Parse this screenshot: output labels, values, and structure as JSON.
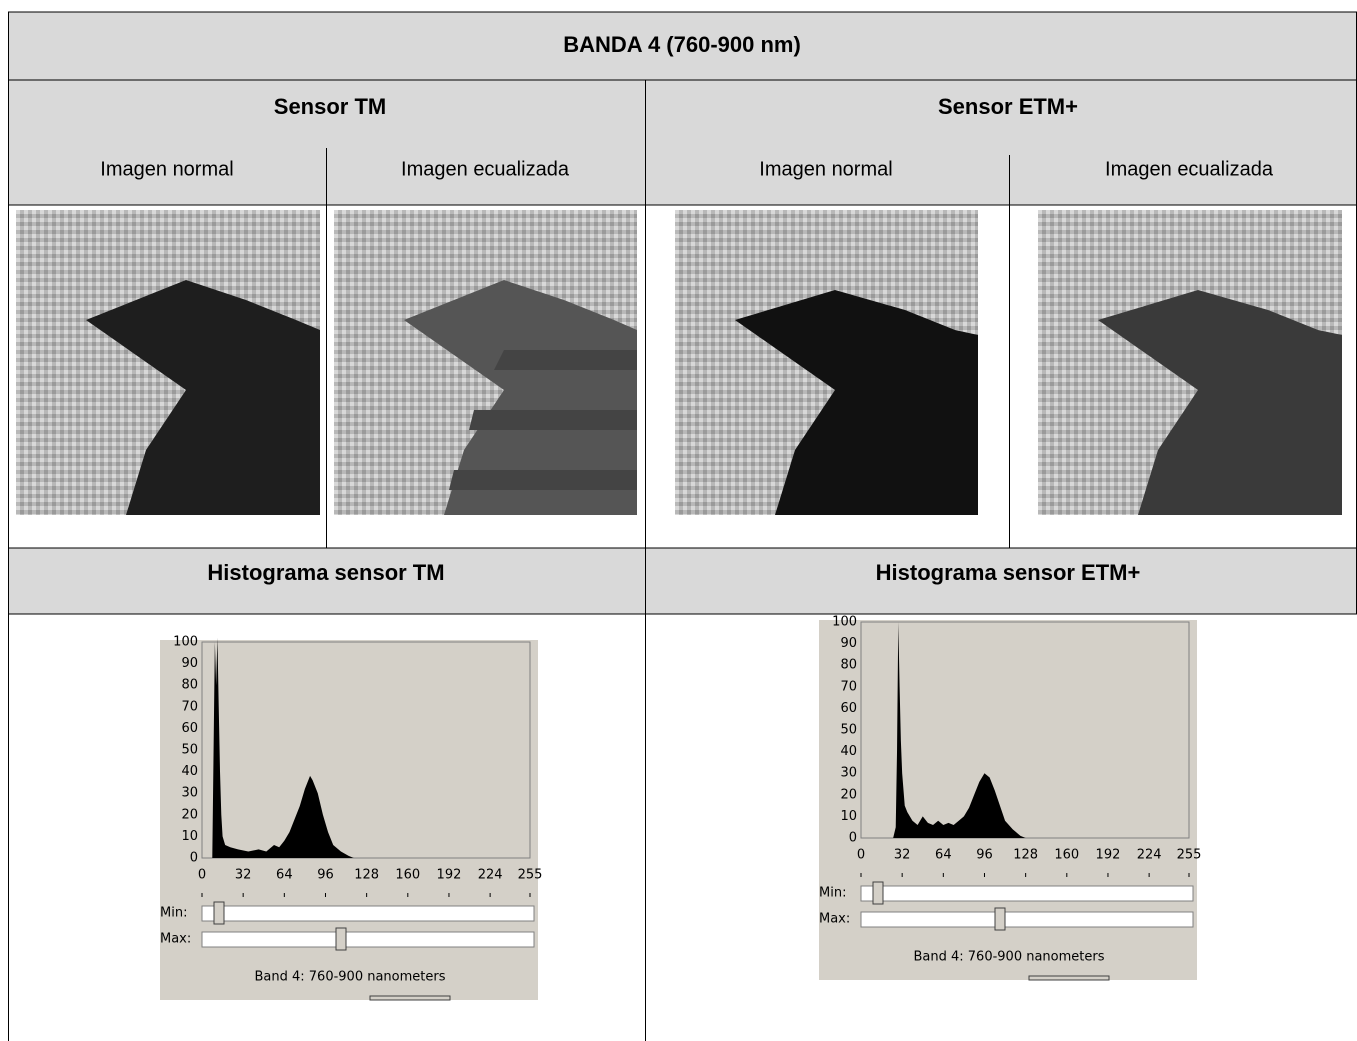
{
  "header": {
    "title": "BANDA 4 (760-900 nm)"
  },
  "sensors": [
    {
      "name": "Sensor TM",
      "columns": [
        "Imagen normal",
        "Imagen ecualizada"
      ],
      "histogram_title": "Histograma sensor TM",
      "histogram": {
        "type": "area",
        "xlim": [
          0,
          255
        ],
        "ylim": [
          0,
          100
        ],
        "xticks": [
          0,
          32,
          64,
          96,
          128,
          160,
          192,
          224,
          255
        ],
        "yticks": [
          0,
          10,
          20,
          30,
          40,
          50,
          60,
          70,
          80,
          90,
          100
        ],
        "x": [
          8,
          10,
          11,
          12,
          13,
          14,
          15,
          16,
          18,
          22,
          28,
          36,
          44,
          50,
          56,
          60,
          64,
          68,
          72,
          76,
          80,
          84,
          86,
          90,
          94,
          98,
          102,
          108,
          114,
          118
        ],
        "values": [
          0,
          100,
          80,
          102,
          70,
          40,
          20,
          10,
          6,
          5,
          4,
          3,
          4,
          3,
          6,
          5,
          8,
          12,
          18,
          24,
          32,
          38,
          36,
          30,
          20,
          12,
          6,
          3,
          1,
          0
        ],
        "color": "#000000",
        "min_label": "Min:",
        "max_label": "Max:",
        "caption": "Band 4: 760-900 nanometers"
      }
    },
    {
      "name": "Sensor ETM+",
      "columns": [
        "Imagen normal",
        "Imagen ecualizada"
      ],
      "histogram_title": "Histograma sensor ETM+",
      "histogram": {
        "type": "area",
        "xlim": [
          0,
          255
        ],
        "ylim": [
          0,
          100
        ],
        "xticks": [
          0,
          32,
          64,
          96,
          128,
          160,
          192,
          224,
          255
        ],
        "yticks": [
          0,
          10,
          20,
          30,
          40,
          50,
          60,
          70,
          80,
          90,
          100
        ],
        "x": [
          25,
          27,
          28,
          29,
          30,
          31,
          32,
          34,
          36,
          40,
          44,
          48,
          52,
          56,
          60,
          64,
          68,
          72,
          76,
          80,
          84,
          88,
          92,
          96,
          100,
          104,
          108,
          112,
          118,
          124,
          128
        ],
        "values": [
          0,
          5,
          40,
          100,
          70,
          45,
          30,
          15,
          12,
          8,
          6,
          10,
          7,
          6,
          8,
          6,
          7,
          6,
          8,
          10,
          14,
          20,
          26,
          30,
          28,
          22,
          15,
          8,
          4,
          1,
          0
        ],
        "color": "#000000",
        "min_label": "Min:",
        "max_label": "Max:",
        "caption": "Band 4: 760-900 nanometers"
      }
    }
  ]
}
